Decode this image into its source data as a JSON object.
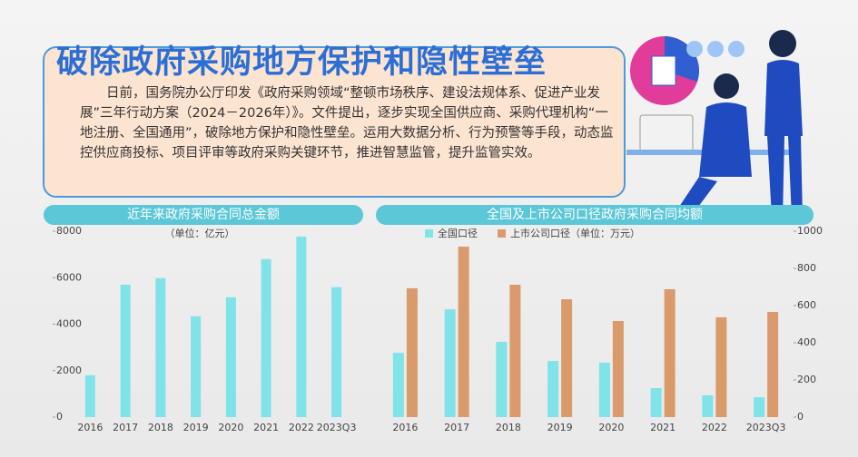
{
  "header": {
    "title": "破除政府采购地方保护和隐性壁垒"
  },
  "body": {
    "text": "日前，国务院办公厅印发《政府采购领域“整顿市场秩序、建设法规体系、促进产业发展”三年行动方案（2024－2026年）》。文件提出，逐步实现全国供应商、采购代理机构“一地注册、全国通用”，破除地方保护和隐性壁垒。运用大数据分析、行为预警等手段，动态监控供应商投标、项目评审等政府采购关键环节，推进智慧监管，提升监管实效。"
  },
  "chart_data": [
    {
      "type": "bar",
      "title": "近年来政府采购合同总金额",
      "subtitle": "（单位：亿元）",
      "categories": [
        "2016",
        "2017",
        "2018",
        "2019",
        "2020",
        "2021",
        "2022",
        "2023Q3"
      ],
      "series": [
        {
          "name": null,
          "color": "#7fe3e8",
          "values": [
            1800,
            5700,
            5980,
            4340,
            5160,
            6800,
            7770,
            5590
          ]
        }
      ],
      "ylim": [
        0,
        8000
      ],
      "yticks": [
        0,
        2000,
        4000,
        6000,
        8000
      ],
      "axis_side": "left",
      "grid": false
    },
    {
      "type": "bar",
      "title": "全国及上市公司口径政府采购合同均额",
      "subtitle": "（单位：万元）",
      "categories": [
        "2016",
        "2017",
        "2018",
        "2019",
        "2020",
        "2021",
        "2022",
        "2023Q3"
      ],
      "series": [
        {
          "name": "全国口径",
          "color": "#7fe3e8",
          "values": [
            346,
            580,
            405,
            302,
            293,
            156,
            117,
            107
          ]
        },
        {
          "name": "上市公司口径",
          "color": "#d99a6c",
          "values": [
            693,
            917,
            712,
            634,
            517,
            688,
            537,
            566
          ]
        }
      ],
      "ylim": [
        0,
        1000
      ],
      "yticks": [
        0,
        200,
        400,
        600,
        800,
        1000
      ],
      "axis_side": "right",
      "grid": false
    }
  ]
}
